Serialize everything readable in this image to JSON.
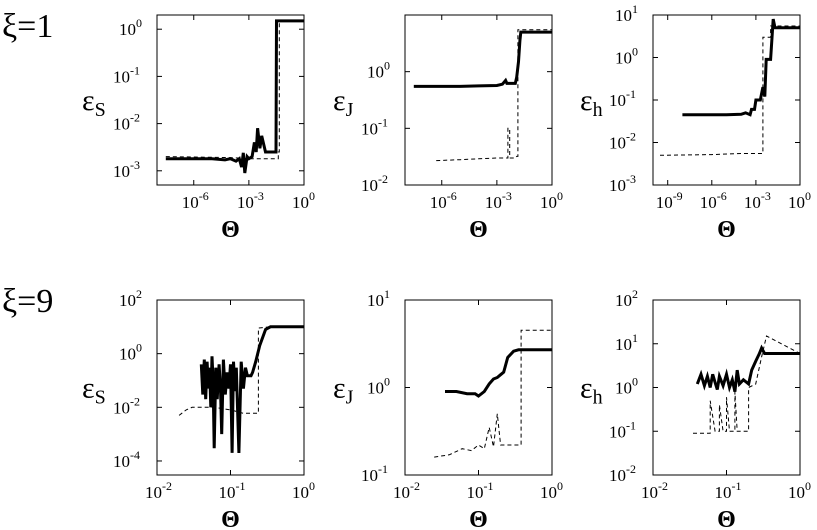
{
  "figure": {
    "row_labels": [
      "ξ=1",
      "ξ=9"
    ]
  },
  "chart_data": [
    {
      "type": "line",
      "row": 0,
      "col": 0,
      "ylabel": "ε",
      "ylabel_sub": "S",
      "xlabel": "Θ",
      "xscale": "log",
      "yscale": "log",
      "xlim": [
        1e-08,
        1
      ],
      "ylim": [
        0.0005,
        2
      ],
      "xticks": [
        -6,
        -3,
        0
      ],
      "yticks": [
        -3,
        -2,
        -1,
        0
      ],
      "series": [
        {
          "style": "solid",
          "x": [
            3e-08,
            1e-05,
            5e-05,
            0.0001,
            0.0002,
            0.0003,
            0.0004,
            0.0005,
            0.0006,
            0.0008,
            0.001,
            0.0015,
            0.002,
            0.0025,
            0.003,
            0.004,
            0.005,
            0.008,
            0.01,
            0.015,
            0.02,
            0.03,
            0.032,
            0.1,
            0.12,
            1
          ],
          "y": [
            0.0018,
            0.0018,
            0.0017,
            0.0018,
            0.0016,
            0.0018,
            0.0012,
            0.0024,
            0.0009,
            0.002,
            0.0018,
            0.002,
            0.004,
            0.0025,
            0.008,
            0.003,
            0.0055,
            0.0025,
            0.0025,
            0.0025,
            0.0025,
            0.0025,
            1.5,
            1.5,
            1.5,
            1.5
          ]
        },
        {
          "style": "dashed",
          "x": [
            3e-08,
            0.0001,
            0.001,
            0.04,
            0.04,
            0.045,
            0.045,
            1
          ],
          "y": [
            0.002,
            0.0019,
            0.0018,
            0.0018,
            0.0025,
            0.0025,
            1.5,
            1.5
          ]
        }
      ]
    },
    {
      "type": "line",
      "row": 0,
      "col": 1,
      "ylabel": "ε",
      "ylabel_sub": "J",
      "xlabel": "Θ",
      "xscale": "log",
      "yscale": "log",
      "xlim": [
        1e-08,
        1
      ],
      "ylim": [
        0.01,
        10
      ],
      "xticks": [
        -6,
        -3,
        0
      ],
      "yticks": [
        -2,
        -1,
        0
      ],
      "series": [
        {
          "style": "solid",
          "x": [
            3e-08,
            1e-05,
            0.0001,
            0.001,
            0.002,
            0.003,
            0.0035,
            0.004,
            0.01,
            0.012,
            0.015,
            0.018,
            0.02,
            1
          ],
          "y": [
            0.55,
            0.55,
            0.56,
            0.57,
            0.6,
            0.7,
            0.62,
            0.62,
            0.62,
            0.8,
            1.5,
            3.5,
            5,
            5
          ]
        },
        {
          "style": "dashed",
          "x": [
            5e-07,
            1e-05,
            0.0001,
            0.001,
            0.004,
            0.004,
            0.005,
            0.005,
            0.01,
            0.012,
            0.014,
            0.014,
            1
          ],
          "y": [
            0.027,
            0.028,
            0.029,
            0.03,
            0.03,
            0.1,
            0.1,
            0.03,
            0.03,
            0.032,
            0.032,
            5.5,
            5.5
          ]
        }
      ]
    },
    {
      "type": "line",
      "row": 0,
      "col": 2,
      "ylabel": "ε",
      "ylabel_sub": "h",
      "xlabel": "Θ",
      "xscale": "log",
      "yscale": "log",
      "xlim": [
        1e-10,
        1
      ],
      "ylim": [
        0.001,
        10
      ],
      "xticks": [
        -9,
        -6,
        -3,
        0
      ],
      "yticks": [
        -3,
        -2,
        -1,
        0,
        1
      ],
      "series": [
        {
          "style": "solid",
          "x": [
            1e-08,
            1e-05,
            0.0001,
            0.0002,
            0.0004,
            0.0005,
            0.0008,
            0.001,
            0.0015,
            0.002,
            0.003,
            0.004,
            0.005,
            0.006,
            0.01,
            0.015,
            0.02,
            1
          ],
          "y": [
            0.045,
            0.045,
            0.046,
            0.05,
            0.045,
            0.06,
            0.06,
            0.1,
            0.1,
            0.1,
            0.2,
            0.12,
            0.9,
            0.9,
            0.9,
            8,
            5,
            5
          ]
        },
        {
          "style": "dashed",
          "x": [
            3e-10,
            1e-06,
            0.0001,
            0.001,
            0.003,
            0.003,
            0.004,
            0.005,
            0.006,
            0.01,
            0.01,
            1
          ],
          "y": [
            0.005,
            0.0052,
            0.0055,
            0.0055,
            0.0055,
            3,
            3,
            3,
            3,
            3,
            5.5,
            5.5
          ]
        }
      ]
    },
    {
      "type": "line",
      "row": 1,
      "col": 0,
      "ylabel": "ε",
      "ylabel_sub": "S",
      "xlabel": "Θ",
      "xscale": "log",
      "yscale": "log",
      "xlim": [
        0.01,
        1
      ],
      "ylim": [
        3e-05,
        100
      ],
      "xticks": [
        -2,
        -1,
        0
      ],
      "yticks": [
        -4,
        -2,
        0,
        2
      ],
      "series": [
        {
          "style": "solid",
          "x": [
            0.04,
            0.042,
            0.044,
            0.046,
            0.048,
            0.05,
            0.052,
            0.054,
            0.056,
            0.058,
            0.06,
            0.063,
            0.066,
            0.07,
            0.073,
            0.076,
            0.08,
            0.085,
            0.09,
            0.095,
            0.1,
            0.105,
            0.11,
            0.115,
            0.12,
            0.13,
            0.14,
            0.15,
            0.16,
            0.17,
            0.18,
            0.19,
            0.2,
            0.22,
            0.25,
            0.3,
            0.35,
            0.4,
            1
          ],
          "y": [
            0.4,
            0.03,
            0.6,
            0.02,
            0.5,
            0.05,
            0.3,
            0.01,
            0.8,
            0.1,
            0.0003,
            0.3,
            0.02,
            0.4,
            0.05,
            0.001,
            0.6,
            0.03,
            0.2,
            0.05,
            0.4,
            0.0002,
            0.5,
            0.04,
            0.3,
            0.0002,
            0.5,
            0.05,
            0.3,
            0.15,
            0.15,
            0.15,
            0.2,
            0.5,
            2,
            8,
            10,
            10,
            10
          ]
        },
        {
          "style": "dashed",
          "x": [
            0.02,
            0.025,
            0.03,
            0.04,
            0.06,
            0.1,
            0.15,
            0.2,
            0.24,
            0.24,
            0.35,
            1
          ],
          "y": [
            0.005,
            0.008,
            0.01,
            0.01,
            0.01,
            0.008,
            0.006,
            0.006,
            0.006,
            9,
            10,
            10
          ]
        }
      ]
    },
    {
      "type": "line",
      "row": 1,
      "col": 1,
      "ylabel": "ε",
      "ylabel_sub": "J",
      "xlabel": "Θ",
      "xscale": "log",
      "yscale": "log",
      "xlim": [
        0.01,
        1
      ],
      "ylim": [
        0.1,
        10
      ],
      "xticks": [
        -2,
        -1,
        0
      ],
      "yticks": [
        -1,
        0,
        1
      ],
      "series": [
        {
          "style": "solid",
          "x": [
            0.035,
            0.05,
            0.07,
            0.09,
            0.1,
            0.12,
            0.14,
            0.16,
            0.18,
            0.2,
            0.22,
            0.25,
            0.3,
            0.35,
            0.5,
            1
          ],
          "y": [
            0.9,
            0.9,
            0.85,
            0.85,
            0.8,
            0.9,
            1.1,
            1.25,
            1.3,
            1.4,
            1.5,
            2.2,
            2.6,
            2.7,
            2.7,
            2.7
          ]
        },
        {
          "style": "dashed",
          "x": [
            0.025,
            0.04,
            0.06,
            0.08,
            0.1,
            0.12,
            0.14,
            0.16,
            0.18,
            0.2,
            0.25,
            0.3,
            0.38,
            0.38,
            1
          ],
          "y": [
            0.16,
            0.17,
            0.2,
            0.19,
            0.22,
            0.2,
            0.35,
            0.21,
            0.5,
            0.22,
            0.22,
            0.22,
            0.22,
            4.5,
            4.5
          ]
        }
      ]
    },
    {
      "type": "line",
      "row": 1,
      "col": 2,
      "ylabel": "ε",
      "ylabel_sub": "h",
      "xlabel": "Θ",
      "xscale": "log",
      "yscale": "log",
      "xlim": [
        0.01,
        1
      ],
      "ylim": [
        0.01,
        100
      ],
      "xticks": [
        -2,
        -1,
        0
      ],
      "yticks": [
        -2,
        -1,
        0,
        1,
        2
      ],
      "series": [
        {
          "style": "solid",
          "x": [
            0.04,
            0.045,
            0.05,
            0.055,
            0.06,
            0.065,
            0.07,
            0.075,
            0.08,
            0.09,
            0.1,
            0.11,
            0.12,
            0.13,
            0.14,
            0.15,
            0.17,
            0.2,
            0.22,
            0.25,
            0.28,
            0.3,
            0.33,
            0.36,
            0.4,
            1
          ],
          "y": [
            1.2,
            2,
            1.1,
            1.8,
            1,
            2,
            1.3,
            0.9,
            1.8,
            1.1,
            2,
            1,
            1.5,
            0.8,
            2.5,
            1.2,
            1.5,
            1.2,
            2.5,
            4,
            6,
            8,
            6,
            6,
            6,
            6
          ]
        },
        {
          "style": "dashed",
          "x": [
            0.035,
            0.05,
            0.06,
            0.06,
            0.07,
            0.08,
            0.08,
            0.09,
            0.1,
            0.1,
            0.11,
            0.13,
            0.13,
            0.14,
            0.16,
            0.2,
            0.2,
            0.25,
            0.3,
            0.35,
            1
          ],
          "y": [
            0.09,
            0.09,
            0.09,
            0.5,
            0.1,
            0.1,
            0.4,
            0.1,
            0.1,
            0.6,
            0.1,
            0.1,
            0.8,
            0.1,
            0.1,
            0.1,
            1,
            1.2,
            5,
            15,
            6
          ]
        }
      ]
    }
  ]
}
